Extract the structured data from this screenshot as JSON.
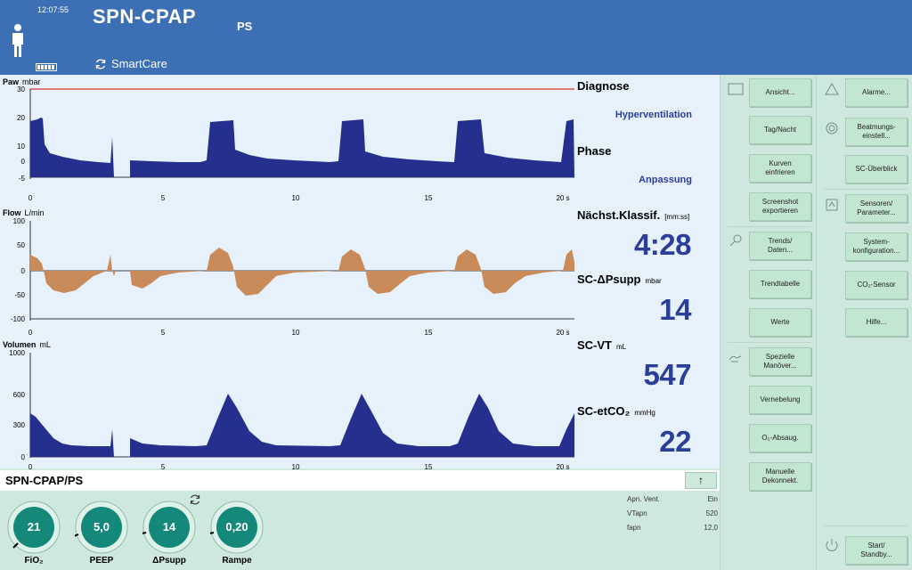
{
  "header": {
    "clock": "12:07:55",
    "mode": "SPN-CPAP",
    "submode": "PS",
    "smartcare_label": "SmartCare"
  },
  "waves": {
    "paw": {
      "label": "Paw",
      "unit": "mbar",
      "ticks_y": [
        "30",
        "20",
        "10",
        "0",
        "-5"
      ],
      "ticks_x": [
        "0",
        "5",
        "10",
        "15",
        "20 s"
      ]
    },
    "flow": {
      "label": "Flow",
      "unit": "L/min",
      "ticks_y": [
        "100",
        "50",
        "0",
        "-50",
        "-100"
      ],
      "ticks_x": [
        "0",
        "5",
        "10",
        "15",
        "20 s"
      ]
    },
    "volume": {
      "label": "Volumen",
      "unit": "mL",
      "ticks_y": [
        "1000",
        "600",
        "300",
        "0"
      ],
      "ticks_x": [
        "0",
        "5",
        "10",
        "15",
        "20 s"
      ]
    }
  },
  "readouts": {
    "diagnose_title": "Diagnose",
    "diagnose_value": "Hyperventilation",
    "phase_title": "Phase",
    "phase_value": "Anpassung",
    "next_title": "Nächst.Klassif.",
    "next_unit": "[mm:ss]",
    "next_value": "4:28",
    "psupp_title": "SC-ΔPsupp",
    "psupp_unit": "mbar",
    "psupp_value": "14",
    "vt_title": "SC-VT",
    "vt_unit": "mL",
    "vt_value": "547",
    "etco2_title": "SC-etCO₂",
    "etco2_unit": "mmHg",
    "etco2_value": "22"
  },
  "modebar": {
    "title": "SPN-CPAP/PS",
    "arrow": "↑"
  },
  "knobs": [
    {
      "value": "21",
      "label": "FiO₂"
    },
    {
      "value": "5,0",
      "label": "PEEP"
    },
    {
      "value": "14",
      "label": "ΔPsupp"
    },
    {
      "value": "0,20",
      "label": "Rampe"
    }
  ],
  "apnea": [
    {
      "label": "Apn. Vent.",
      "value": "Ein"
    },
    {
      "label": "VTapn",
      "value": "520"
    },
    {
      "label": "fapn",
      "value": "12,0"
    }
  ],
  "panel1": {
    "buttons": [
      "Ansicht...",
      "Tag/Nacht",
      "Kurven\neinfrieren",
      "Screenshot\nexportieren",
      "Trends/\nDaten...",
      "Trendtabelle",
      "Werte",
      "Spezielle\nManöver...",
      "Vernebelung",
      "O₂-Absaug.",
      "Manuelle\nDekonnekt."
    ]
  },
  "panel2": {
    "buttons": [
      "Alarme...",
      "Beatmungs-\neinstell...",
      "SC-Überblick",
      "Sensoren/\nParameter...",
      "System-\nkonfiguration...",
      "CO₂-Sensor",
      "Hilfe...",
      "Start/\nStandby..."
    ]
  },
  "colors": {
    "header_bg": "#3d6fb4",
    "wave_dark": "#25308e",
    "flow_fill": "#c98b5a",
    "alarm_line": "#d9342b",
    "knob": "#14897a"
  }
}
